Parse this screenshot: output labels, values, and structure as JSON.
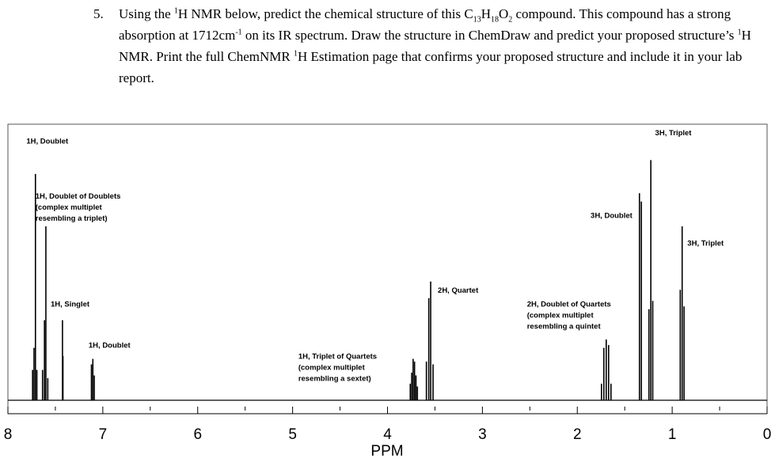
{
  "question": {
    "number": "5.",
    "segments": [
      {
        "t": "Using the "
      },
      {
        "t": "1",
        "sup": true
      },
      {
        "t": "H NMR below, predict the chemical structure of this C"
      },
      {
        "t": "13",
        "sub": true
      },
      {
        "t": "H"
      },
      {
        "t": "18",
        "sub": true
      },
      {
        "t": "O"
      },
      {
        "t": "2",
        "sub": true
      },
      {
        "t": " compound.  This compound has a strong absorption at 1712cm"
      },
      {
        "t": "-1",
        "sup": true
      },
      {
        "t": " on its IR spectrum.  Draw the structure in ChemDraw and predict your proposed structure’s "
      },
      {
        "t": "1",
        "sup": true
      },
      {
        "t": "H NMR. Print the full ChemNMR "
      },
      {
        "t": "1",
        "sup": true
      },
      {
        "t": "H Estimation page that confirms your proposed structure and include it in your lab report."
      }
    ]
  },
  "chart_data": {
    "type": "line",
    "xlabel": "PPM",
    "xlim": [
      8,
      0
    ],
    "x_reversed": true,
    "ticks": [
      8,
      7,
      6,
      5,
      4,
      3,
      2,
      1,
      0
    ],
    "tick_labels": [
      "8",
      "7",
      "6",
      "5",
      "4",
      "3",
      "2",
      "1",
      "0"
    ],
    "ylim": [
      0,
      1
    ],
    "peaks": [
      {
        "x": 7.74,
        "y": 0.11
      },
      {
        "x": 7.725,
        "y": 0.19
      },
      {
        "x": 7.71,
        "y": 0.82
      },
      {
        "x": 7.695,
        "y": 0.11
      },
      {
        "x": 7.635,
        "y": 0.11
      },
      {
        "x": 7.615,
        "y": 0.29
      },
      {
        "x": 7.6,
        "y": 0.63
      },
      {
        "x": 7.58,
        "y": 0.08
      },
      {
        "x": 7.425,
        "y": 0.29
      },
      {
        "x": 7.42,
        "y": 0.16
      },
      {
        "x": 7.12,
        "y": 0.13
      },
      {
        "x": 7.105,
        "y": 0.15
      },
      {
        "x": 7.09,
        "y": 0.09
      },
      {
        "x": 3.76,
        "y": 0.06
      },
      {
        "x": 3.745,
        "y": 0.1
      },
      {
        "x": 3.73,
        "y": 0.15
      },
      {
        "x": 3.715,
        "y": 0.14
      },
      {
        "x": 3.7,
        "y": 0.09
      },
      {
        "x": 3.685,
        "y": 0.05
      },
      {
        "x": 3.59,
        "y": 0.14
      },
      {
        "x": 3.565,
        "y": 0.37
      },
      {
        "x": 3.545,
        "y": 0.43
      },
      {
        "x": 3.52,
        "y": 0.13
      },
      {
        "x": 1.745,
        "y": 0.06
      },
      {
        "x": 1.72,
        "y": 0.19
      },
      {
        "x": 1.695,
        "y": 0.22
      },
      {
        "x": 1.67,
        "y": 0.2
      },
      {
        "x": 1.645,
        "y": 0.06
      },
      {
        "x": 1.345,
        "y": 0.75
      },
      {
        "x": 1.325,
        "y": 0.72
      },
      {
        "x": 1.245,
        "y": 0.33
      },
      {
        "x": 1.225,
        "y": 0.87
      },
      {
        "x": 1.205,
        "y": 0.36
      },
      {
        "x": 0.915,
        "y": 0.4
      },
      {
        "x": 0.895,
        "y": 0.63
      },
      {
        "x": 0.875,
        "y": 0.34
      }
    ],
    "annotations": [
      {
        "text": [
          "1H, Doublet"
        ],
        "x": 7.805,
        "y": 0.93
      },
      {
        "text": [
          "1H, Doublet of Doublets",
          "(complex multiplet",
          "resembling a triplet)"
        ],
        "x": 7.71,
        "y": 0.73
      },
      {
        "text": [
          "1H, Singlet"
        ],
        "x": 7.55,
        "y": 0.34
      },
      {
        "text": [
          "1H, Doublet"
        ],
        "x": 7.15,
        "y": 0.19
      },
      {
        "text": [
          "1H, Triplet of Quartets",
          "(complex multiplet",
          "resembling a sextet)"
        ],
        "x": 4.94,
        "y": 0.15
      },
      {
        "text": [
          "2H, Quartet"
        ],
        "x": 3.47,
        "y": 0.39
      },
      {
        "text": [
          "2H, Doublet of Quartets",
          "(complex multiplet",
          "resembling a quintet"
        ],
        "x": 2.53,
        "y": 0.34
      },
      {
        "text": [
          "3H, Doublet"
        ],
        "x": 1.86,
        "y": 0.66
      },
      {
        "text": [
          "3H, Triplet"
        ],
        "x": 1.18,
        "y": 0.96
      },
      {
        "text": [
          "3H, Triplet"
        ],
        "x": 0.84,
        "y": 0.56
      }
    ]
  }
}
